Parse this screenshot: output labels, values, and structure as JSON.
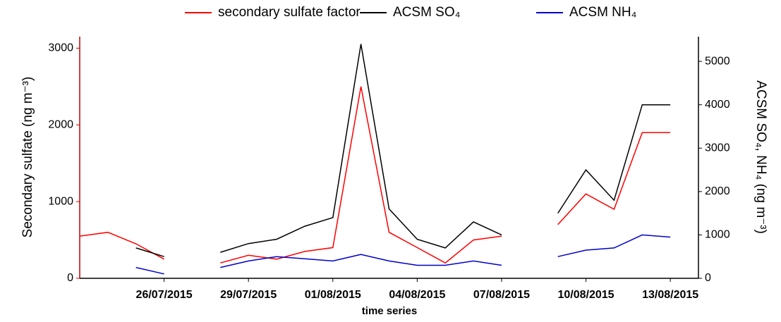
{
  "chart_data": {
    "type": "line",
    "x": [
      "23/07/2015",
      "24/07/2015",
      "25/07/2015",
      "26/07/2015",
      "27/07/2015",
      "28/07/2015",
      "29/07/2015",
      "30/07/2015",
      "31/07/2015",
      "01/08/2015",
      "02/08/2015",
      "03/08/2015",
      "04/08/2015",
      "05/08/2015",
      "06/08/2015",
      "07/08/2015",
      "08/08/2015",
      "09/08/2015",
      "10/08/2015",
      "11/08/2015",
      "12/08/2015",
      "13/08/2015"
    ],
    "series": [
      {
        "name": "secondary sulfate factor",
        "color": "#ff0000",
        "values": [
          550,
          600,
          450,
          250,
          null,
          200,
          300,
          250,
          350,
          400,
          2500,
          600,
          400,
          200,
          500,
          550,
          null,
          700,
          1100,
          900,
          1900,
          1900
        ]
      },
      {
        "name": "ACSM SO₄",
        "color": "#000000",
        "axis": "y2",
        "values": [
          null,
          null,
          700,
          500,
          null,
          600,
          800,
          900,
          1200,
          1400,
          5400,
          1600,
          900,
          700,
          1300,
          1000,
          null,
          1500,
          2500,
          1800,
          4000,
          4000
        ]
      },
      {
        "name": "ACSM NH₄",
        "color": "#0000cc",
        "axis": "y2",
        "values": [
          null,
          null,
          250,
          100,
          null,
          250,
          400,
          500,
          450,
          400,
          550,
          400,
          300,
          300,
          400,
          300,
          null,
          500,
          650,
          700,
          1000,
          950
        ]
      }
    ],
    "xlabel": "time series",
    "ylabel": "Secondary sulfate (ng m⁻³)",
    "y2label": "ACSM SO₄, NH₄ (ng m⁻³)",
    "xlim": [
      "23/07/2015",
      "14/08/2015"
    ],
    "xticks": [
      "26/07/2015",
      "29/07/2015",
      "01/08/2015",
      "04/08/2015",
      "07/08/2015",
      "10/08/2015",
      "13/08/2015"
    ],
    "ylim": [
      0,
      3150
    ],
    "yticks": [
      0,
      1000,
      2000,
      3000
    ],
    "y2lim": [
      0,
      5570
    ],
    "y2ticks": [
      0,
      1000,
      2000,
      3000,
      4000,
      5000
    ],
    "ylabel_color": "#c00000",
    "legend": "top"
  }
}
